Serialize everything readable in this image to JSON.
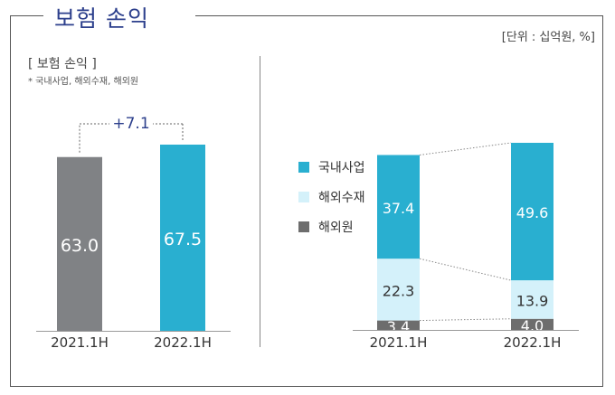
{
  "header": {
    "title": "보험 손익",
    "unit": "[단위 : 십억원, %]"
  },
  "left_panel": {
    "subtitle": "[ 보험 손익 ]",
    "note": "* 국내사업, 해외수재, 해외원"
  },
  "legend": [
    {
      "label": "국내사업",
      "color": "#29afd0"
    },
    {
      "label": "해외수재",
      "color": "#d4f1fa"
    },
    {
      "label": "해외원",
      "color": "#6d6d6d"
    }
  ],
  "chart_data": [
    {
      "type": "bar",
      "categories": [
        "2021.1H",
        "2022.1H"
      ],
      "values": [
        63.0,
        67.5
      ],
      "value_labels": [
        "63.0",
        "67.5"
      ],
      "colors": [
        "#808285",
        "#29afd0"
      ],
      "annotation": "+7.1"
    },
    {
      "type": "bar",
      "stacked": true,
      "categories": [
        "2021.1H",
        "2022.1H"
      ],
      "series": [
        {
          "name": "해외원",
          "values": [
            3.4,
            4.0
          ],
          "labels": [
            "3.4",
            "4.0"
          ],
          "color": "#6d6d6d"
        },
        {
          "name": "해외수재",
          "values": [
            22.3,
            13.9
          ],
          "labels": [
            "22.3",
            "13.9"
          ],
          "color": "#d4f1fa"
        },
        {
          "name": "국내사업",
          "values": [
            37.4,
            49.6
          ],
          "labels": [
            "37.4",
            "49.6"
          ],
          "color": "#29afd0"
        }
      ]
    }
  ]
}
